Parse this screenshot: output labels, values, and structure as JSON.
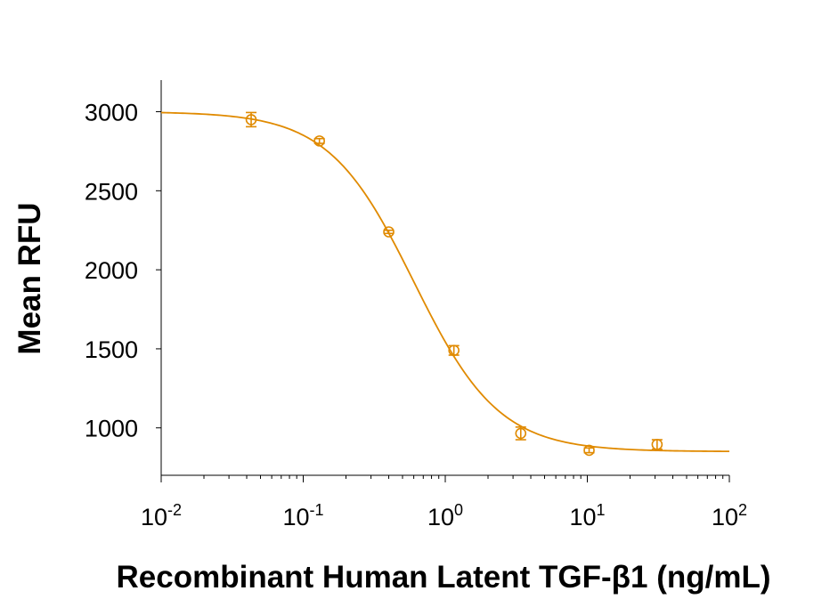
{
  "chart_data": {
    "type": "scatter",
    "title": "",
    "xlabel": "Recombinant Human Latent TGF-β1 (ng/mL)",
    "ylabel": "Mean RFU",
    "x_scale": "log",
    "xlim": [
      0.01,
      100
    ],
    "ylim": [
      700,
      3200
    ],
    "x_ticks": [
      {
        "value": 0.01,
        "base": "10",
        "exp": "-2"
      },
      {
        "value": 0.1,
        "base": "10",
        "exp": "-1"
      },
      {
        "value": 1,
        "base": "10",
        "exp": "0"
      },
      {
        "value": 10,
        "base": "10",
        "exp": "1"
      },
      {
        "value": 100,
        "base": "10",
        "exp": "2"
      }
    ],
    "y_ticks": [
      1000,
      1500,
      2000,
      2500,
      3000
    ],
    "grid": false,
    "legend": "none",
    "color": "#E08A00",
    "points": [
      {
        "x": 0.043,
        "y": 2950,
        "err": 45
      },
      {
        "x": 0.13,
        "y": 2815,
        "err": 15
      },
      {
        "x": 0.4,
        "y": 2240,
        "err": 10
      },
      {
        "x": 1.15,
        "y": 1490,
        "err": 30
      },
      {
        "x": 3.4,
        "y": 965,
        "err": 40
      },
      {
        "x": 10.3,
        "y": 858,
        "err": 15
      },
      {
        "x": 31,
        "y": 895,
        "err": 30
      }
    ],
    "fit_curve": {
      "model": "4PL",
      "top": 3000,
      "bottom": 850,
      "ec50": 0.6,
      "hill": 1.45
    }
  }
}
